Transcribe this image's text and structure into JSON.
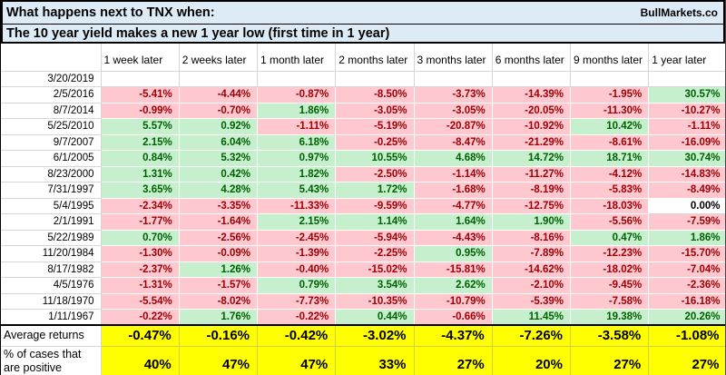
{
  "header": {
    "title_line1": "What happens next to TNX when:",
    "title_line2": "The 10 year yield makes a new 1 year low (first time in 1 year)",
    "brand": "BullMarkets.co"
  },
  "colors": {
    "title_bg": "#DDEBF7",
    "negative_bg": "#FFC7CE",
    "negative_text": "#9C0006",
    "positive_bg": "#C6EFCE",
    "positive_text": "#006100",
    "summary_bg": "#FFFF00"
  },
  "table": {
    "column_headers": [
      "1 week later",
      "2 weeks later",
      "1 month later",
      "2 months later",
      "3 months later",
      "6 months later",
      "9 months later",
      "1 year later"
    ],
    "rows": [
      {
        "date": "3/20/2019",
        "cells": [
          "",
          "",
          "",
          "",
          "",
          "",
          "",
          ""
        ]
      },
      {
        "date": "2/5/2016",
        "cells": [
          "-5.41%",
          "-4.44%",
          "-0.87%",
          "-8.50%",
          "-3.73%",
          "-14.39%",
          "-1.95%",
          "30.57%"
        ]
      },
      {
        "date": "8/7/2014",
        "cells": [
          "-0.99%",
          "-0.70%",
          "1.86%",
          "-3.05%",
          "-3.05%",
          "-20.05%",
          "-11.30%",
          "-10.27%"
        ]
      },
      {
        "date": "5/25/2010",
        "cells": [
          "5.57%",
          "0.92%",
          "-1.11%",
          "-5.19%",
          "-20.87%",
          "-10.92%",
          "10.42%",
          "-1.11%"
        ]
      },
      {
        "date": "9/7/2007",
        "cells": [
          "2.15%",
          "6.04%",
          "6.18%",
          "-0.25%",
          "-8.47%",
          "-21.29%",
          "-8.61%",
          "-16.09%"
        ]
      },
      {
        "date": "6/1/2005",
        "cells": [
          "0.84%",
          "5.32%",
          "0.97%",
          "10.55%",
          "4.68%",
          "14.72%",
          "18.71%",
          "30.74%"
        ]
      },
      {
        "date": "8/23/2000",
        "cells": [
          "1.31%",
          "0.42%",
          "1.82%",
          "-2.50%",
          "-1.14%",
          "-11.27%",
          "-4.12%",
          "-14.83%"
        ]
      },
      {
        "date": "7/31/1997",
        "cells": [
          "3.65%",
          "4.28%",
          "5.43%",
          "1.72%",
          "-1.68%",
          "-8.19%",
          "-5.83%",
          "-8.49%"
        ]
      },
      {
        "date": "5/4/1995",
        "cells": [
          "-2.34%",
          "-3.35%",
          "-11.33%",
          "-9.59%",
          "-4.77%",
          "-12.75%",
          "-18.03%",
          "0.00%"
        ]
      },
      {
        "date": "2/1/1991",
        "cells": [
          "-1.77%",
          "-1.64%",
          "2.15%",
          "1.14%",
          "1.64%",
          "1.90%",
          "-5.56%",
          "-7.59%"
        ]
      },
      {
        "date": "5/22/1989",
        "cells": [
          "0.70%",
          "-2.56%",
          "-2.45%",
          "-5.94%",
          "-4.43%",
          "-8.16%",
          "0.47%",
          "1.86%"
        ]
      },
      {
        "date": "11/20/1984",
        "cells": [
          "-1.30%",
          "-0.09%",
          "-1.39%",
          "-2.25%",
          "0.95%",
          "-7.89%",
          "-12.23%",
          "-15.70%"
        ]
      },
      {
        "date": "8/17/1982",
        "cells": [
          "-2.37%",
          "1.26%",
          "-0.40%",
          "-15.02%",
          "-15.81%",
          "-14.62%",
          "-18.02%",
          "-7.04%"
        ]
      },
      {
        "date": "4/5/1976",
        "cells": [
          "-1.31%",
          "-1.57%",
          "0.79%",
          "3.54%",
          "2.62%",
          "-2.10%",
          "-9.45%",
          "-2.36%"
        ]
      },
      {
        "date": "11/18/1970",
        "cells": [
          "-5.54%",
          "-8.02%",
          "-7.73%",
          "-10.35%",
          "-10.79%",
          "-5.39%",
          "-7.58%",
          "-16.18%"
        ]
      },
      {
        "date": "1/11/1967",
        "cells": [
          "-0.22%",
          "1.76%",
          "-0.22%",
          "0.44%",
          "-0.66%",
          "11.45%",
          "19.38%",
          "20.26%"
        ]
      }
    ],
    "summary": {
      "avg_label": "Average returns",
      "avg_values": [
        "-0.47%",
        "-0.16%",
        "-0.42%",
        "-3.02%",
        "-4.37%",
        "-7.26%",
        "-3.58%",
        "-1.08%"
      ],
      "pct_label": "% of cases that are positive",
      "pct_values": [
        "40%",
        "47%",
        "47%",
        "33%",
        "27%",
        "20%",
        "27%",
        "27%"
      ]
    }
  }
}
